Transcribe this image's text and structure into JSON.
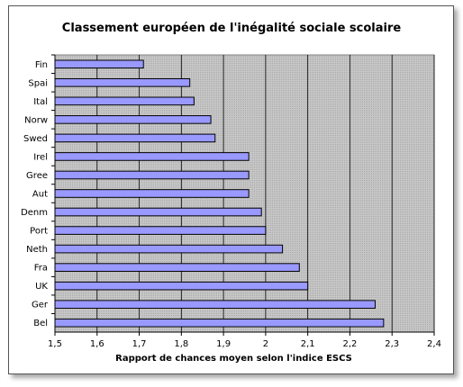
{
  "chart_data": {
    "type": "bar",
    "orientation": "horizontal",
    "title": "Classement européen de l'inégalité sociale scolaire",
    "xlabel": "Rapport de chances moyen selon l'indice ESCS",
    "ylabel": "",
    "categories": [
      "Fin",
      "Spai",
      "Ital",
      "Norw",
      "Swed",
      "Irel",
      "Gree",
      "Aut",
      "Denm",
      "Port",
      "Neth",
      "Fra",
      "UK",
      "Ger",
      "Bel"
    ],
    "values": [
      1.71,
      1.82,
      1.83,
      1.87,
      1.88,
      1.96,
      1.96,
      1.96,
      1.99,
      2.0,
      2.04,
      2.08,
      2.1,
      2.26,
      2.28
    ],
    "xlim": [
      1.5,
      2.4
    ],
    "xticks": [
      1.5,
      1.6,
      1.7,
      1.8,
      1.9,
      2.0,
      2.1,
      2.2,
      2.3,
      2.4
    ],
    "xtick_labels": [
      "1,5",
      "1,6",
      "1,7",
      "1,8",
      "1,9",
      "2",
      "2,1",
      "2,2",
      "2,3",
      "2,4"
    ],
    "grid": "vertical",
    "legend": "none",
    "colors": {
      "bar_fill": "#9999ff",
      "bar_stroke": "#000000",
      "plot_background": "#c0c0c0",
      "grid": "#000000"
    }
  }
}
